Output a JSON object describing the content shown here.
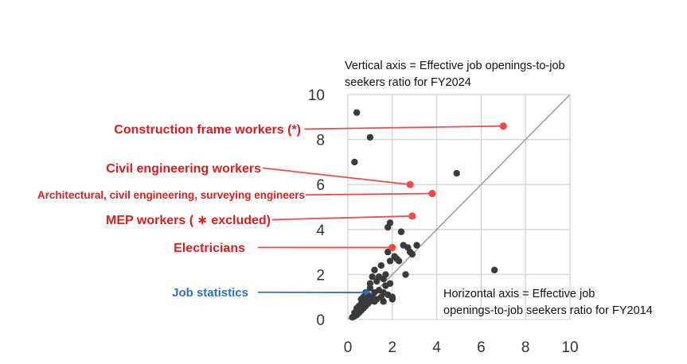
{
  "chart_data": {
    "type": "scatter",
    "ylabel_lines": [
      "Vertical axis = Effective job openings-to-job",
      "seekers ratio for FY2024"
    ],
    "xlabel_lines": [
      "Horizontal axis = Effective job",
      "openings-to-job seekers ratio for FY2014"
    ],
    "xlim": [
      0,
      10
    ],
    "ylim": [
      0,
      10
    ],
    "xticks": [
      "0",
      "2",
      "4",
      "6",
      "8",
      "10"
    ],
    "yticks": [
      "0",
      "2",
      "4",
      "6",
      "8",
      "10"
    ],
    "grid": true,
    "diagonal_reference_line": true,
    "colors": {
      "points": "#3a3a3a",
      "highlight": "#f04a4a",
      "highlight_text": "#e01b1b",
      "job_stats": "#2e6fc0",
      "grid": "#d4d4d4",
      "diagonal": "#a0a0a0"
    },
    "points": [
      [
        0.4,
        9.2
      ],
      [
        1.0,
        8.1
      ],
      [
        0.3,
        7.0
      ],
      [
        4.9,
        6.5
      ],
      [
        6.6,
        2.2
      ],
      [
        1.8,
        4.1
      ],
      [
        1.9,
        4.3
      ],
      [
        2.4,
        3.9
      ],
      [
        2.5,
        3.3
      ],
      [
        2.7,
        3.2
      ],
      [
        2.8,
        3.0
      ],
      [
        3.1,
        3.3
      ],
      [
        2.9,
        2.9
      ],
      [
        2.6,
        2.0
      ],
      [
        1.5,
        2.4
      ],
      [
        1.7,
        2.0
      ],
      [
        1.6,
        1.8
      ],
      [
        1.8,
        3.0
      ],
      [
        1.9,
        2.6
      ],
      [
        2.1,
        2.8
      ],
      [
        2.3,
        2.6
      ],
      [
        2.2,
        2.7
      ],
      [
        1.2,
        2.2
      ],
      [
        1.4,
        1.9
      ],
      [
        1.3,
        1.7
      ],
      [
        1.1,
        1.9
      ],
      [
        1.7,
        1.5
      ],
      [
        1.9,
        1.6
      ],
      [
        1.0,
        1.4
      ],
      [
        1.2,
        1.2
      ],
      [
        1.4,
        1.3
      ],
      [
        1.5,
        1.0
      ],
      [
        1.6,
        1.2
      ],
      [
        1.8,
        1.1
      ],
      [
        2.0,
        1.0
      ],
      [
        1.1,
        1.0
      ],
      [
        1.3,
        0.9
      ],
      [
        0.9,
        1.1
      ],
      [
        0.8,
        0.9
      ],
      [
        0.7,
        1.0
      ],
      [
        0.9,
        0.7
      ],
      [
        0.6,
        0.7
      ],
      [
        0.5,
        0.6
      ],
      [
        0.7,
        0.5
      ],
      [
        0.4,
        0.5
      ],
      [
        0.6,
        0.4
      ],
      [
        0.5,
        0.3
      ],
      [
        0.3,
        0.3
      ],
      [
        0.4,
        0.2
      ],
      [
        0.2,
        0.1
      ],
      [
        0.3,
        0.15
      ],
      [
        0.8,
        0.6
      ],
      [
        1.0,
        0.8
      ],
      [
        0.7,
        0.8
      ],
      [
        0.6,
        0.9
      ],
      [
        0.8,
        1.2
      ],
      [
        1.0,
        1.6
      ],
      [
        2.0,
        0.9
      ],
      [
        1.6,
        0.8
      ],
      [
        1.2,
        0.8
      ]
    ],
    "callouts": [
      {
        "label": "Construction frame workers (*)",
        "x": 7.0,
        "y": 8.6,
        "color": "red",
        "size": "large"
      },
      {
        "label": "Civil engineering workers",
        "x": 2.8,
        "y": 6.0,
        "color": "red",
        "size": "large"
      },
      {
        "label": "Architectural, civil engineering, surveying engineers",
        "x": 3.8,
        "y": 5.6,
        "color": "red",
        "size": "small"
      },
      {
        "label": "MEP workers ( ∗ excluded)",
        "x": 2.9,
        "y": 4.6,
        "color": "red",
        "size": "large"
      },
      {
        "label": "Electricians",
        "x": 2.0,
        "y": 3.2,
        "color": "red",
        "size": "large"
      },
      {
        "label": "Job statistics",
        "x": 1.0,
        "y": 1.2,
        "color": "blue",
        "size": "large"
      }
    ]
  }
}
